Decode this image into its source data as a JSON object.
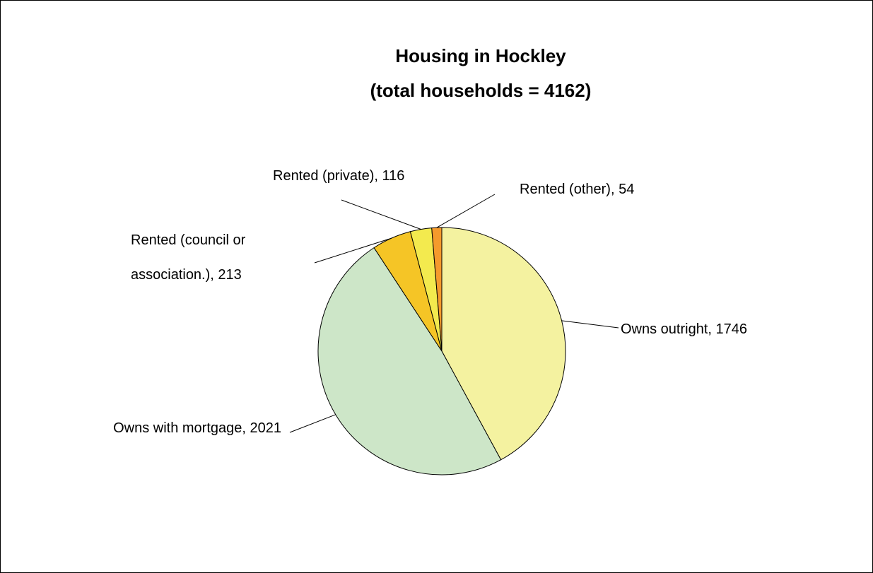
{
  "chart_data": {
    "type": "pie",
    "title": "Housing in Hockley",
    "subtitle": "(total households = 4162)",
    "categories": [
      "Owns outright",
      "Owns with mortgage",
      "Rented (council or association.)",
      "Rented (private)",
      "Rented (other)"
    ],
    "values": [
      1746,
      2021,
      213,
      116,
      54
    ],
    "value_labels": [
      "Owns outright, 1746",
      "Owns with mortgage, 2021",
      "Rented (council or association.), 213",
      "Rented (private), 116",
      "Rented (other), 54"
    ],
    "colors": [
      "#f4f2a0",
      "#cde6c8",
      "#f5c526",
      "#f3ea4e",
      "#f59a2c"
    ]
  }
}
